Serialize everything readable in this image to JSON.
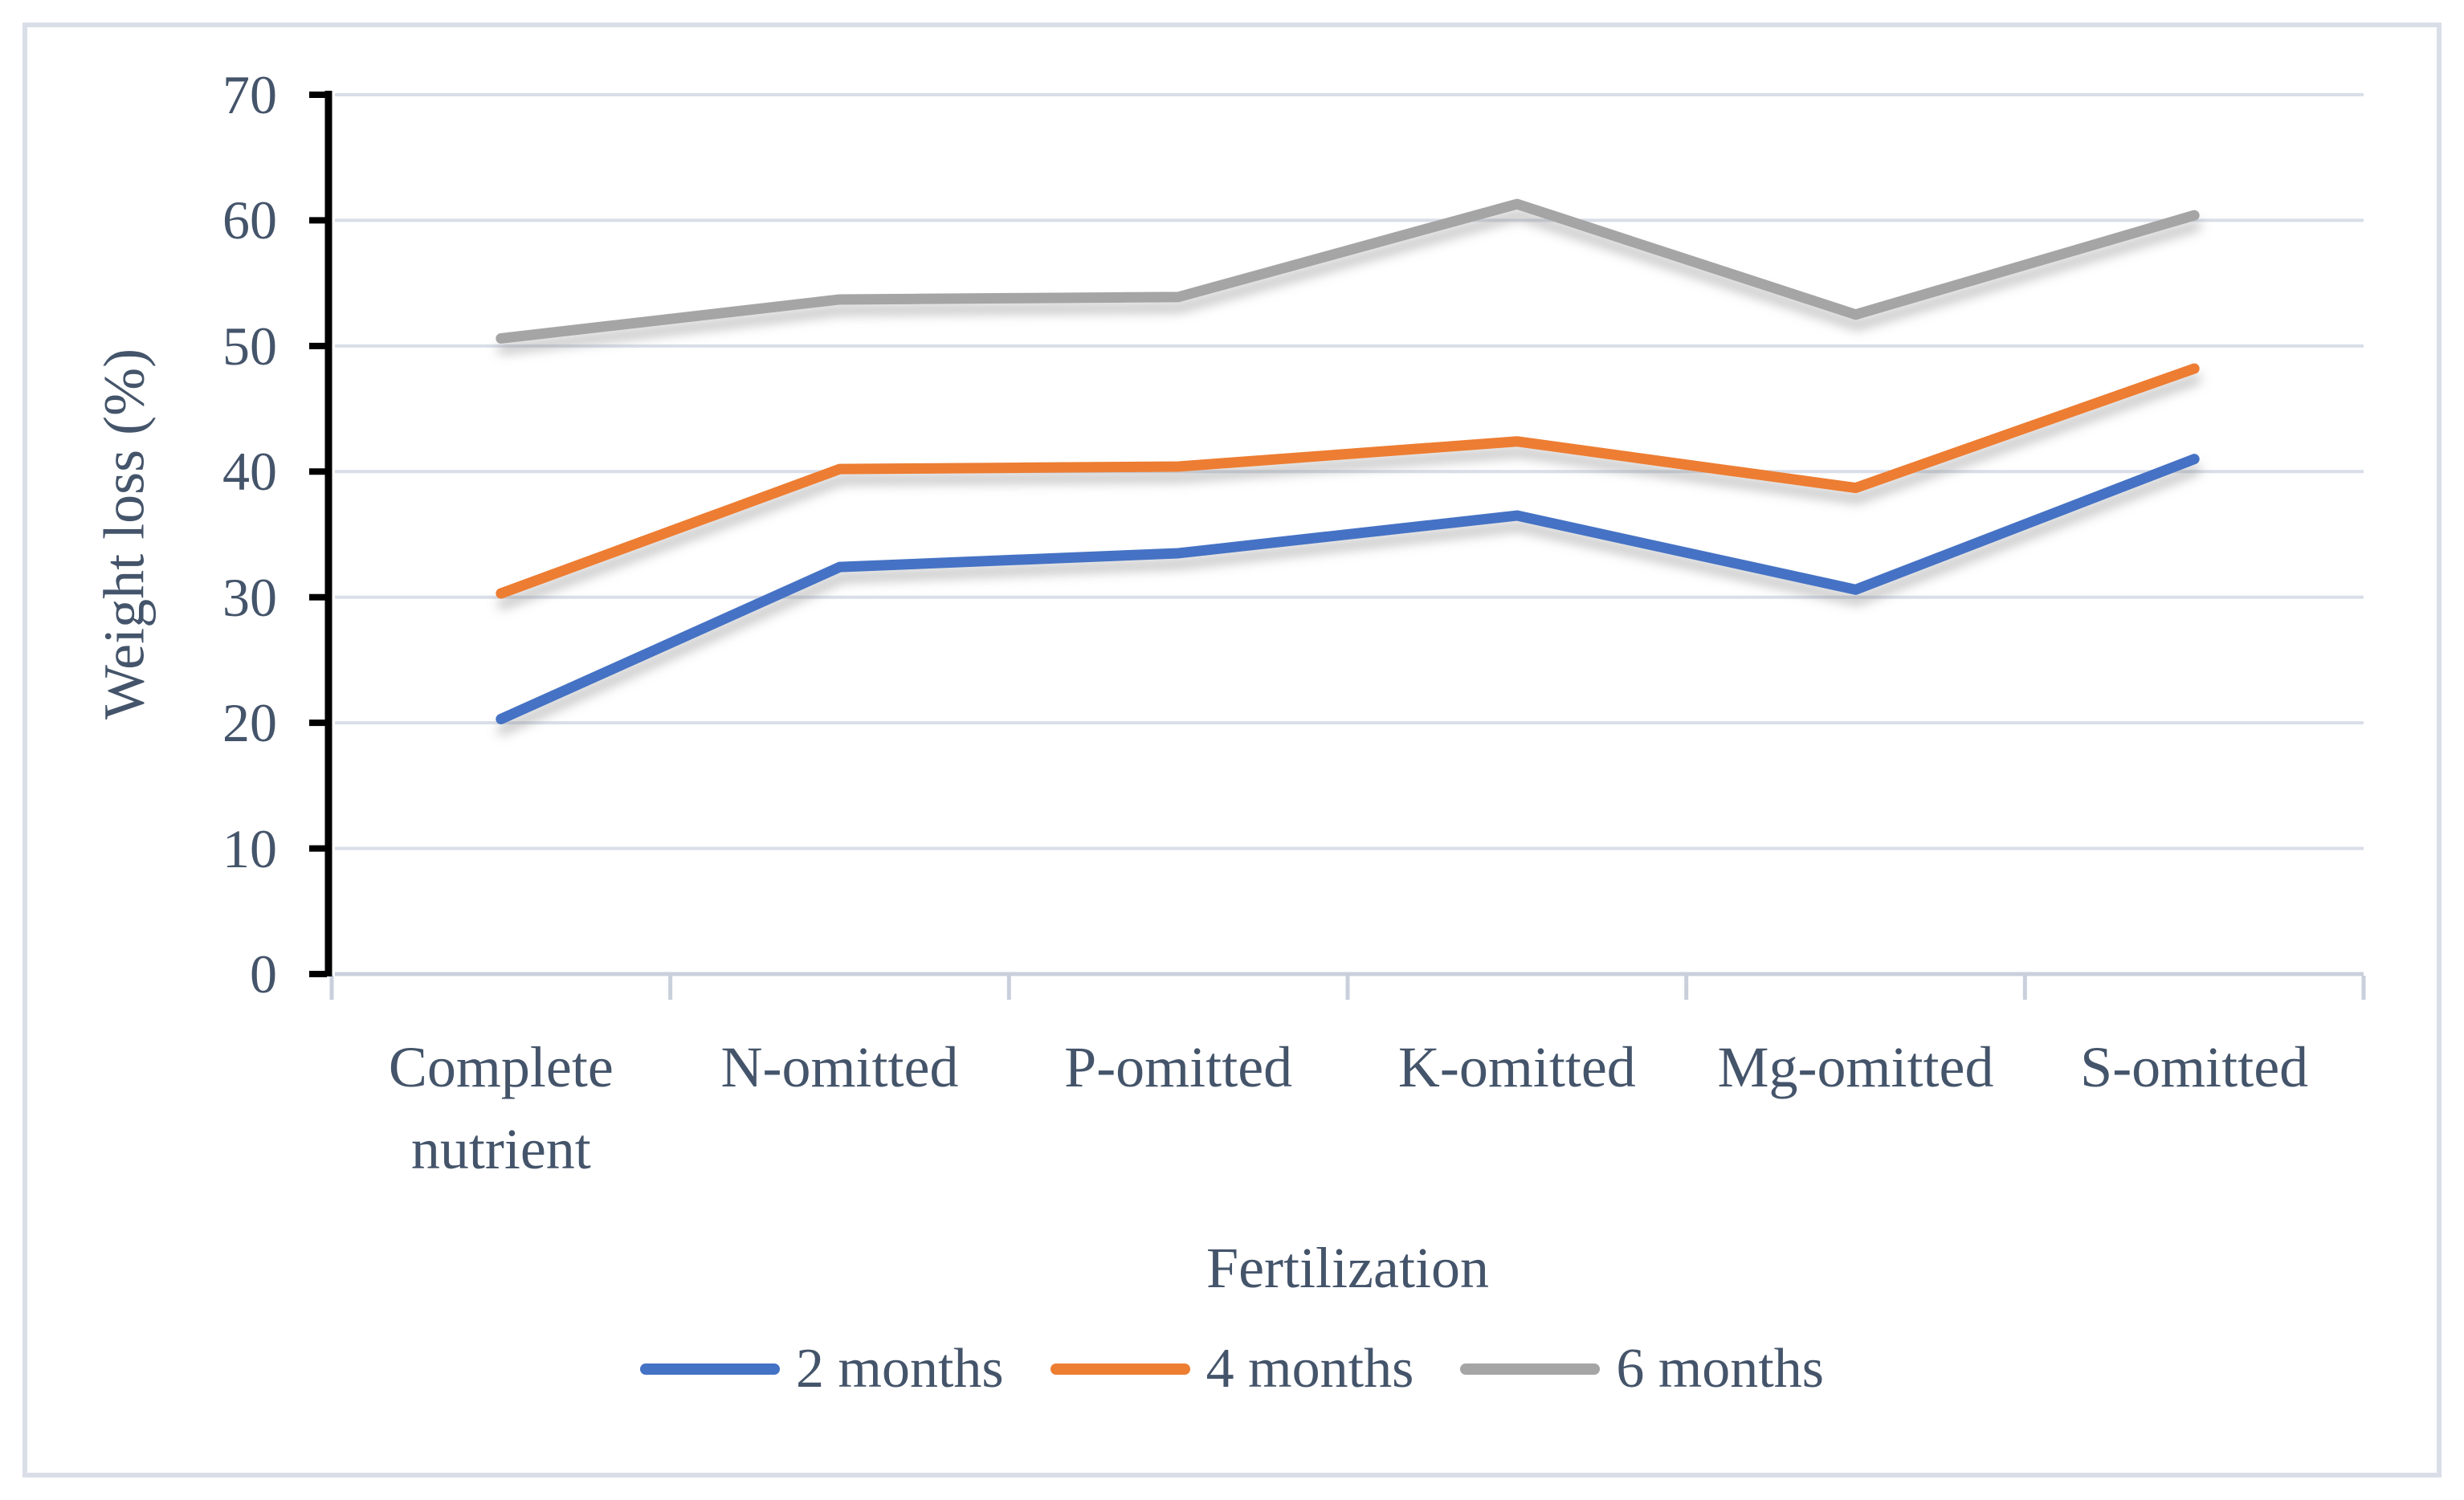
{
  "page": {
    "background": "#FFFFFF",
    "border_color": "#DADEE7"
  },
  "colors": {
    "text": "#44546A",
    "axis_line": "#000000",
    "gridline": "#D9DEE8",
    "baseline": "#C9D0DC",
    "shadow": "#7F7F7F"
  },
  "chart_data": {
    "type": "line",
    "title": "",
    "xlabel": "Fertilization",
    "ylabel": "Weight loss (%)",
    "categories": [
      "Complete nutrient",
      "N-omitted",
      "P-omitted",
      "K-omitted",
      "Mg-omitted",
      "S-omitted"
    ],
    "series": [
      {
        "name": "2 months",
        "color": "#4472C4",
        "values": [
          20.3,
          32.4,
          33.5,
          36.5,
          30.6,
          41.0
        ]
      },
      {
        "name": "4 months",
        "color": "#ED7D31",
        "values": [
          30.3,
          40.2,
          40.4,
          42.4,
          38.7,
          48.2
        ]
      },
      {
        "name": "6 months",
        "color": "#A5A5A5",
        "values": [
          50.6,
          53.7,
          53.9,
          61.3,
          52.5,
          60.4
        ]
      }
    ],
    "ylim": [
      0,
      70
    ],
    "yticks": [
      0,
      10,
      20,
      30,
      40,
      50,
      60,
      70
    ],
    "grid": true,
    "legend_position": "bottom"
  }
}
